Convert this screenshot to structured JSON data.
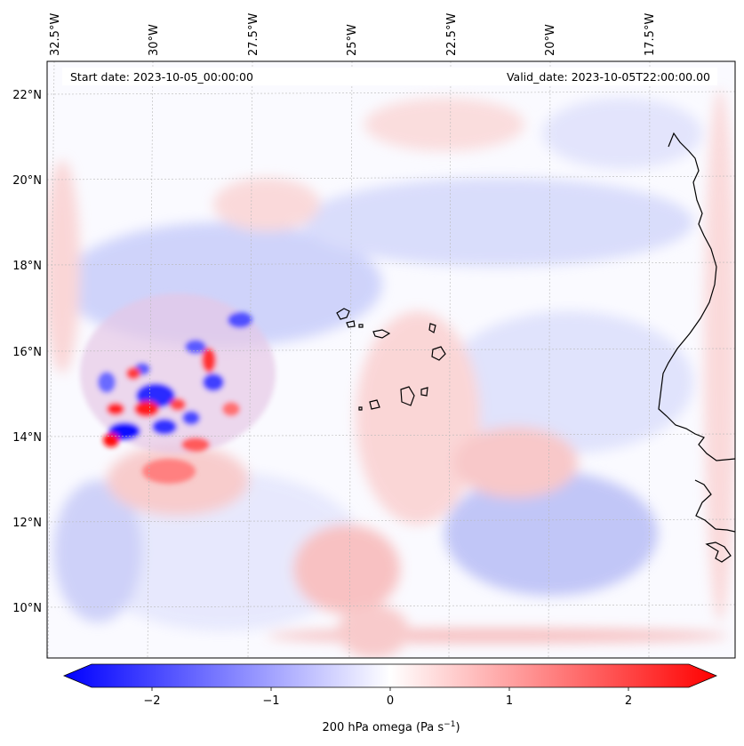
{
  "header": {
    "start_date": "Start date: 2023-10-05_00:00:00",
    "valid_date": "Valid_date: 2023-10-05T22:00:00.00"
  },
  "map": {
    "field": "200 hPa omega",
    "lon_labels": [
      "32.5°W",
      "30°W",
      "27.5°W",
      "25°W",
      "22.5°W",
      "20°W",
      "17.5°W"
    ],
    "lat_labels": [
      "22°N",
      "20°N",
      "18°N",
      "16°N",
      "14°N",
      "12°N",
      "10°N"
    ],
    "colors": {
      "negative": "#0000ff",
      "neutral": "#ffffff",
      "positive": "#ff0000",
      "coastline": "#000000",
      "gridline": "#b8b8b8"
    }
  },
  "colorbar": {
    "ticks": [
      "−2",
      "−1",
      "0",
      "1",
      "2"
    ],
    "range": [
      -2.5,
      2.5
    ],
    "label": "200 hPa omega (Pa s",
    "label_sup": "−1",
    "label_end": ")"
  }
}
